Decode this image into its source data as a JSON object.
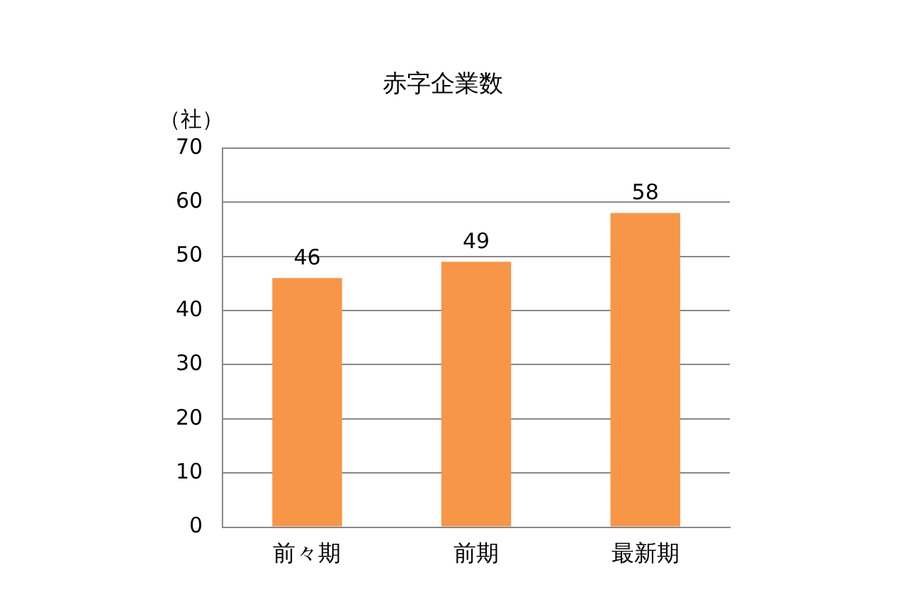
{
  "chart_data": {
    "type": "bar",
    "title": "赤字企業数",
    "ylabel": "（社）",
    "categories": [
      "前々期",
      "前期",
      "最新期"
    ],
    "values": [
      46,
      49,
      58
    ],
    "color": "#f79646",
    "ylim": [
      0,
      70
    ],
    "yticks": [
      0,
      10,
      20,
      30,
      40,
      50,
      60,
      70
    ],
    "grid": "y",
    "data_labels": true
  }
}
